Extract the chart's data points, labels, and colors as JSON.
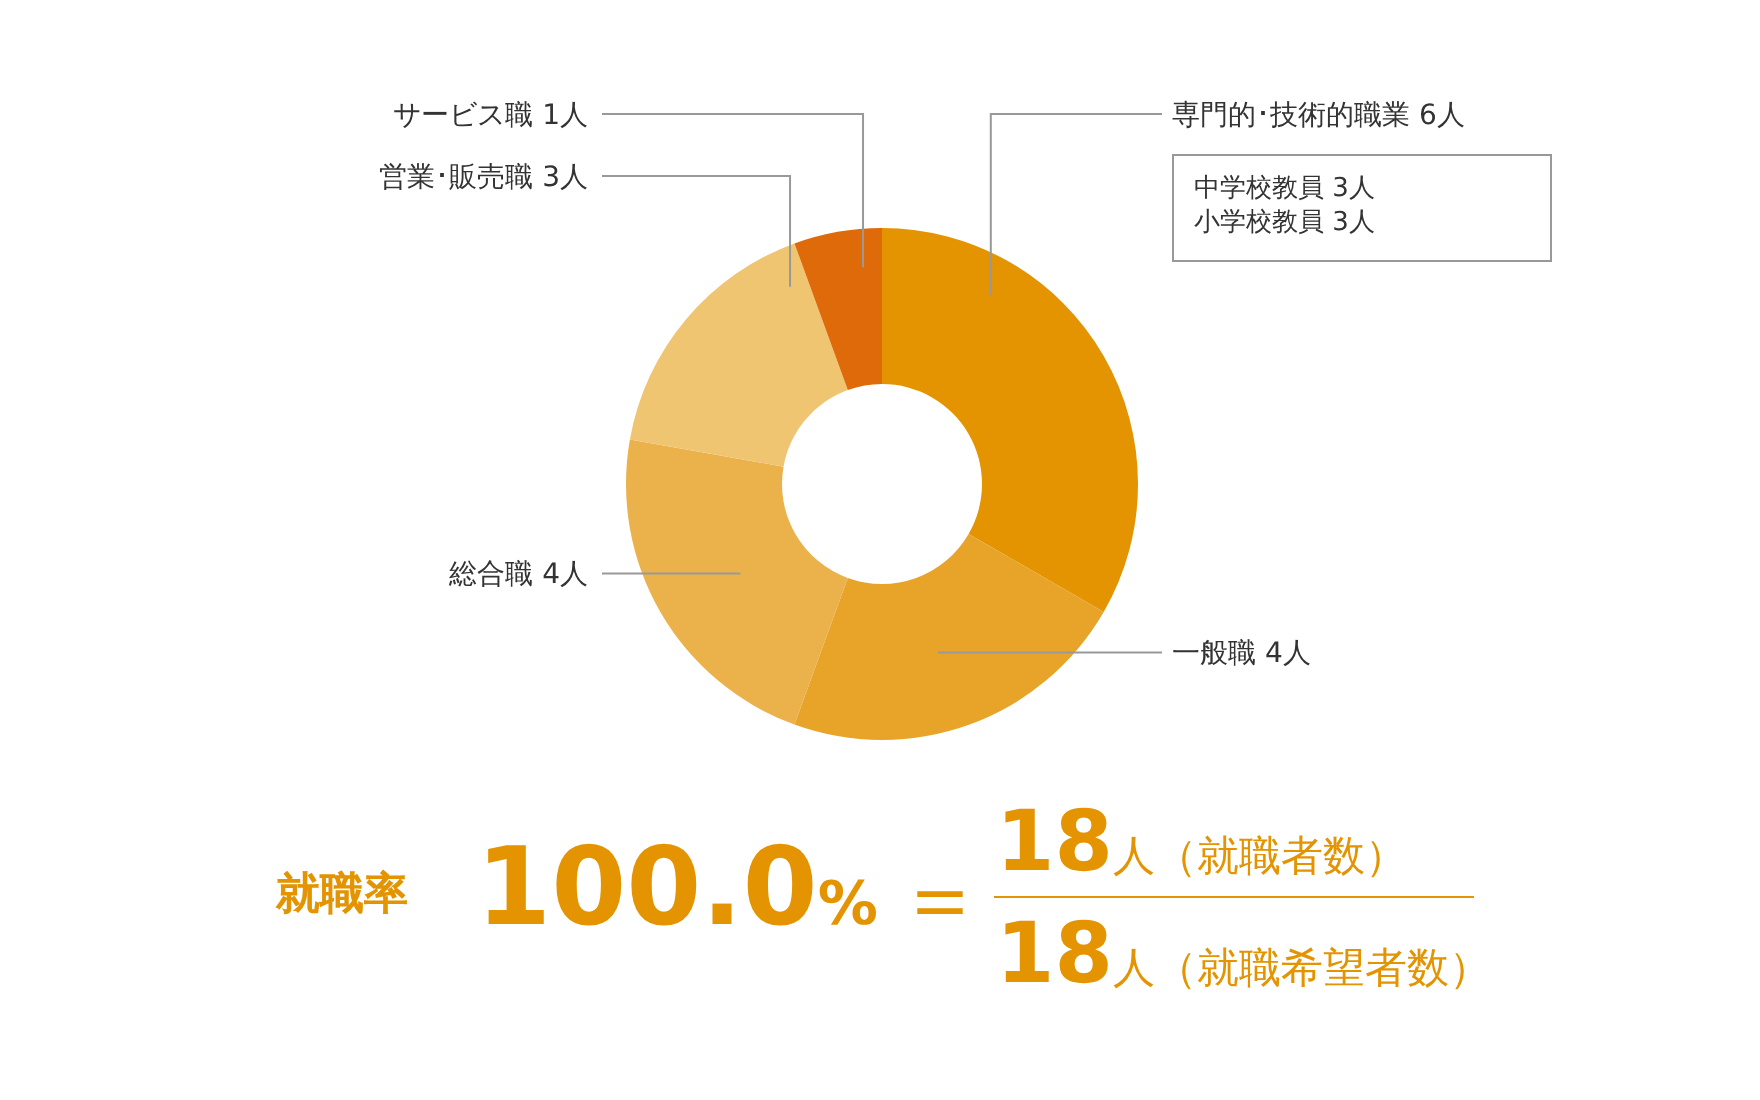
{
  "chart_data": {
    "type": "donut",
    "categories": [
      "専門的･技術的職業",
      "一般職",
      "総合職",
      "営業･販売職",
      "サービス職"
    ],
    "values": [
      6,
      4,
      4,
      3,
      1
    ],
    "value_labels": [
      "6人",
      "4人",
      "4人",
      "3人",
      "1人"
    ],
    "colors": [
      "#e39400",
      "#e8a329",
      "#ebb24c",
      "#f0c572",
      "#df6a0a"
    ],
    "annotations": [
      "中学校教員 3人",
      "小学校教員 3人",
      "就職率",
      "100.0%",
      "＝",
      "18人（就職者数）",
      "18人（就職希望者数）"
    ]
  }
}
